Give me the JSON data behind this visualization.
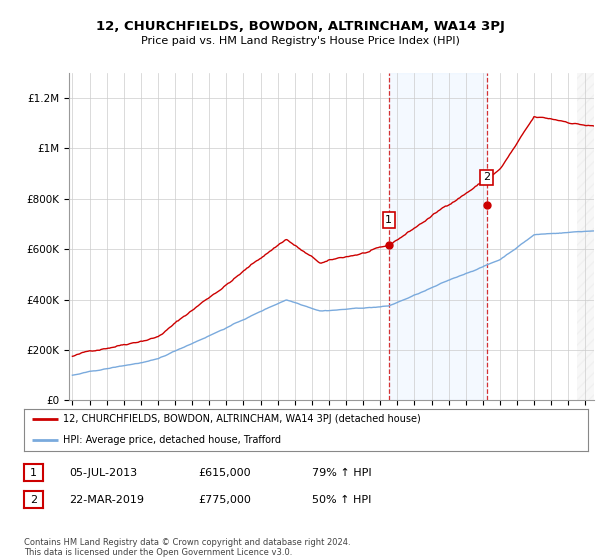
{
  "title": "12, CHURCHFIELDS, BOWDON, ALTRINCHAM, WA14 3PJ",
  "subtitle": "Price paid vs. HM Land Registry's House Price Index (HPI)",
  "ylabel_ticks": [
    "£0",
    "£200K",
    "£400K",
    "£600K",
    "£800K",
    "£1M",
    "£1.2M"
  ],
  "ytick_values": [
    0,
    200000,
    400000,
    600000,
    800000,
    1000000,
    1200000
  ],
  "ylim": [
    0,
    1300000
  ],
  "xlim_start": 1994.8,
  "xlim_end": 2025.5,
  "xticks": [
    1995,
    1996,
    1997,
    1998,
    1999,
    2000,
    2001,
    2002,
    2003,
    2004,
    2005,
    2006,
    2007,
    2008,
    2009,
    2010,
    2011,
    2012,
    2013,
    2014,
    2015,
    2016,
    2017,
    2018,
    2019,
    2020,
    2021,
    2022,
    2023,
    2024,
    2025
  ],
  "bg_color": "#ffffff",
  "plot_bg_color": "#ffffff",
  "red_line_color": "#cc0000",
  "blue_line_color": "#7aaadd",
  "shaded_region_color": "#ddeeff",
  "sale1_x": 2013.5,
  "sale1_y": 615000,
  "sale1_label": "1",
  "sale2_x": 2019.22,
  "sale2_y": 775000,
  "sale2_label": "2",
  "vline1_x": 2013.5,
  "vline2_x": 2019.22,
  "legend_red_label": "12, CHURCHFIELDS, BOWDON, ALTRINCHAM, WA14 3PJ (detached house)",
  "legend_blue_label": "HPI: Average price, detached house, Trafford",
  "table_row1": [
    "1",
    "05-JUL-2013",
    "£615,000",
    "79% ↑ HPI"
  ],
  "table_row2": [
    "2",
    "22-MAR-2019",
    "£775,000",
    "50% ↑ HPI"
  ],
  "footer": "Contains HM Land Registry data © Crown copyright and database right 2024.\nThis data is licensed under the Open Government Licence v3.0.",
  "grid_color": "#cccccc",
  "hatch_region_start": 2024.5
}
